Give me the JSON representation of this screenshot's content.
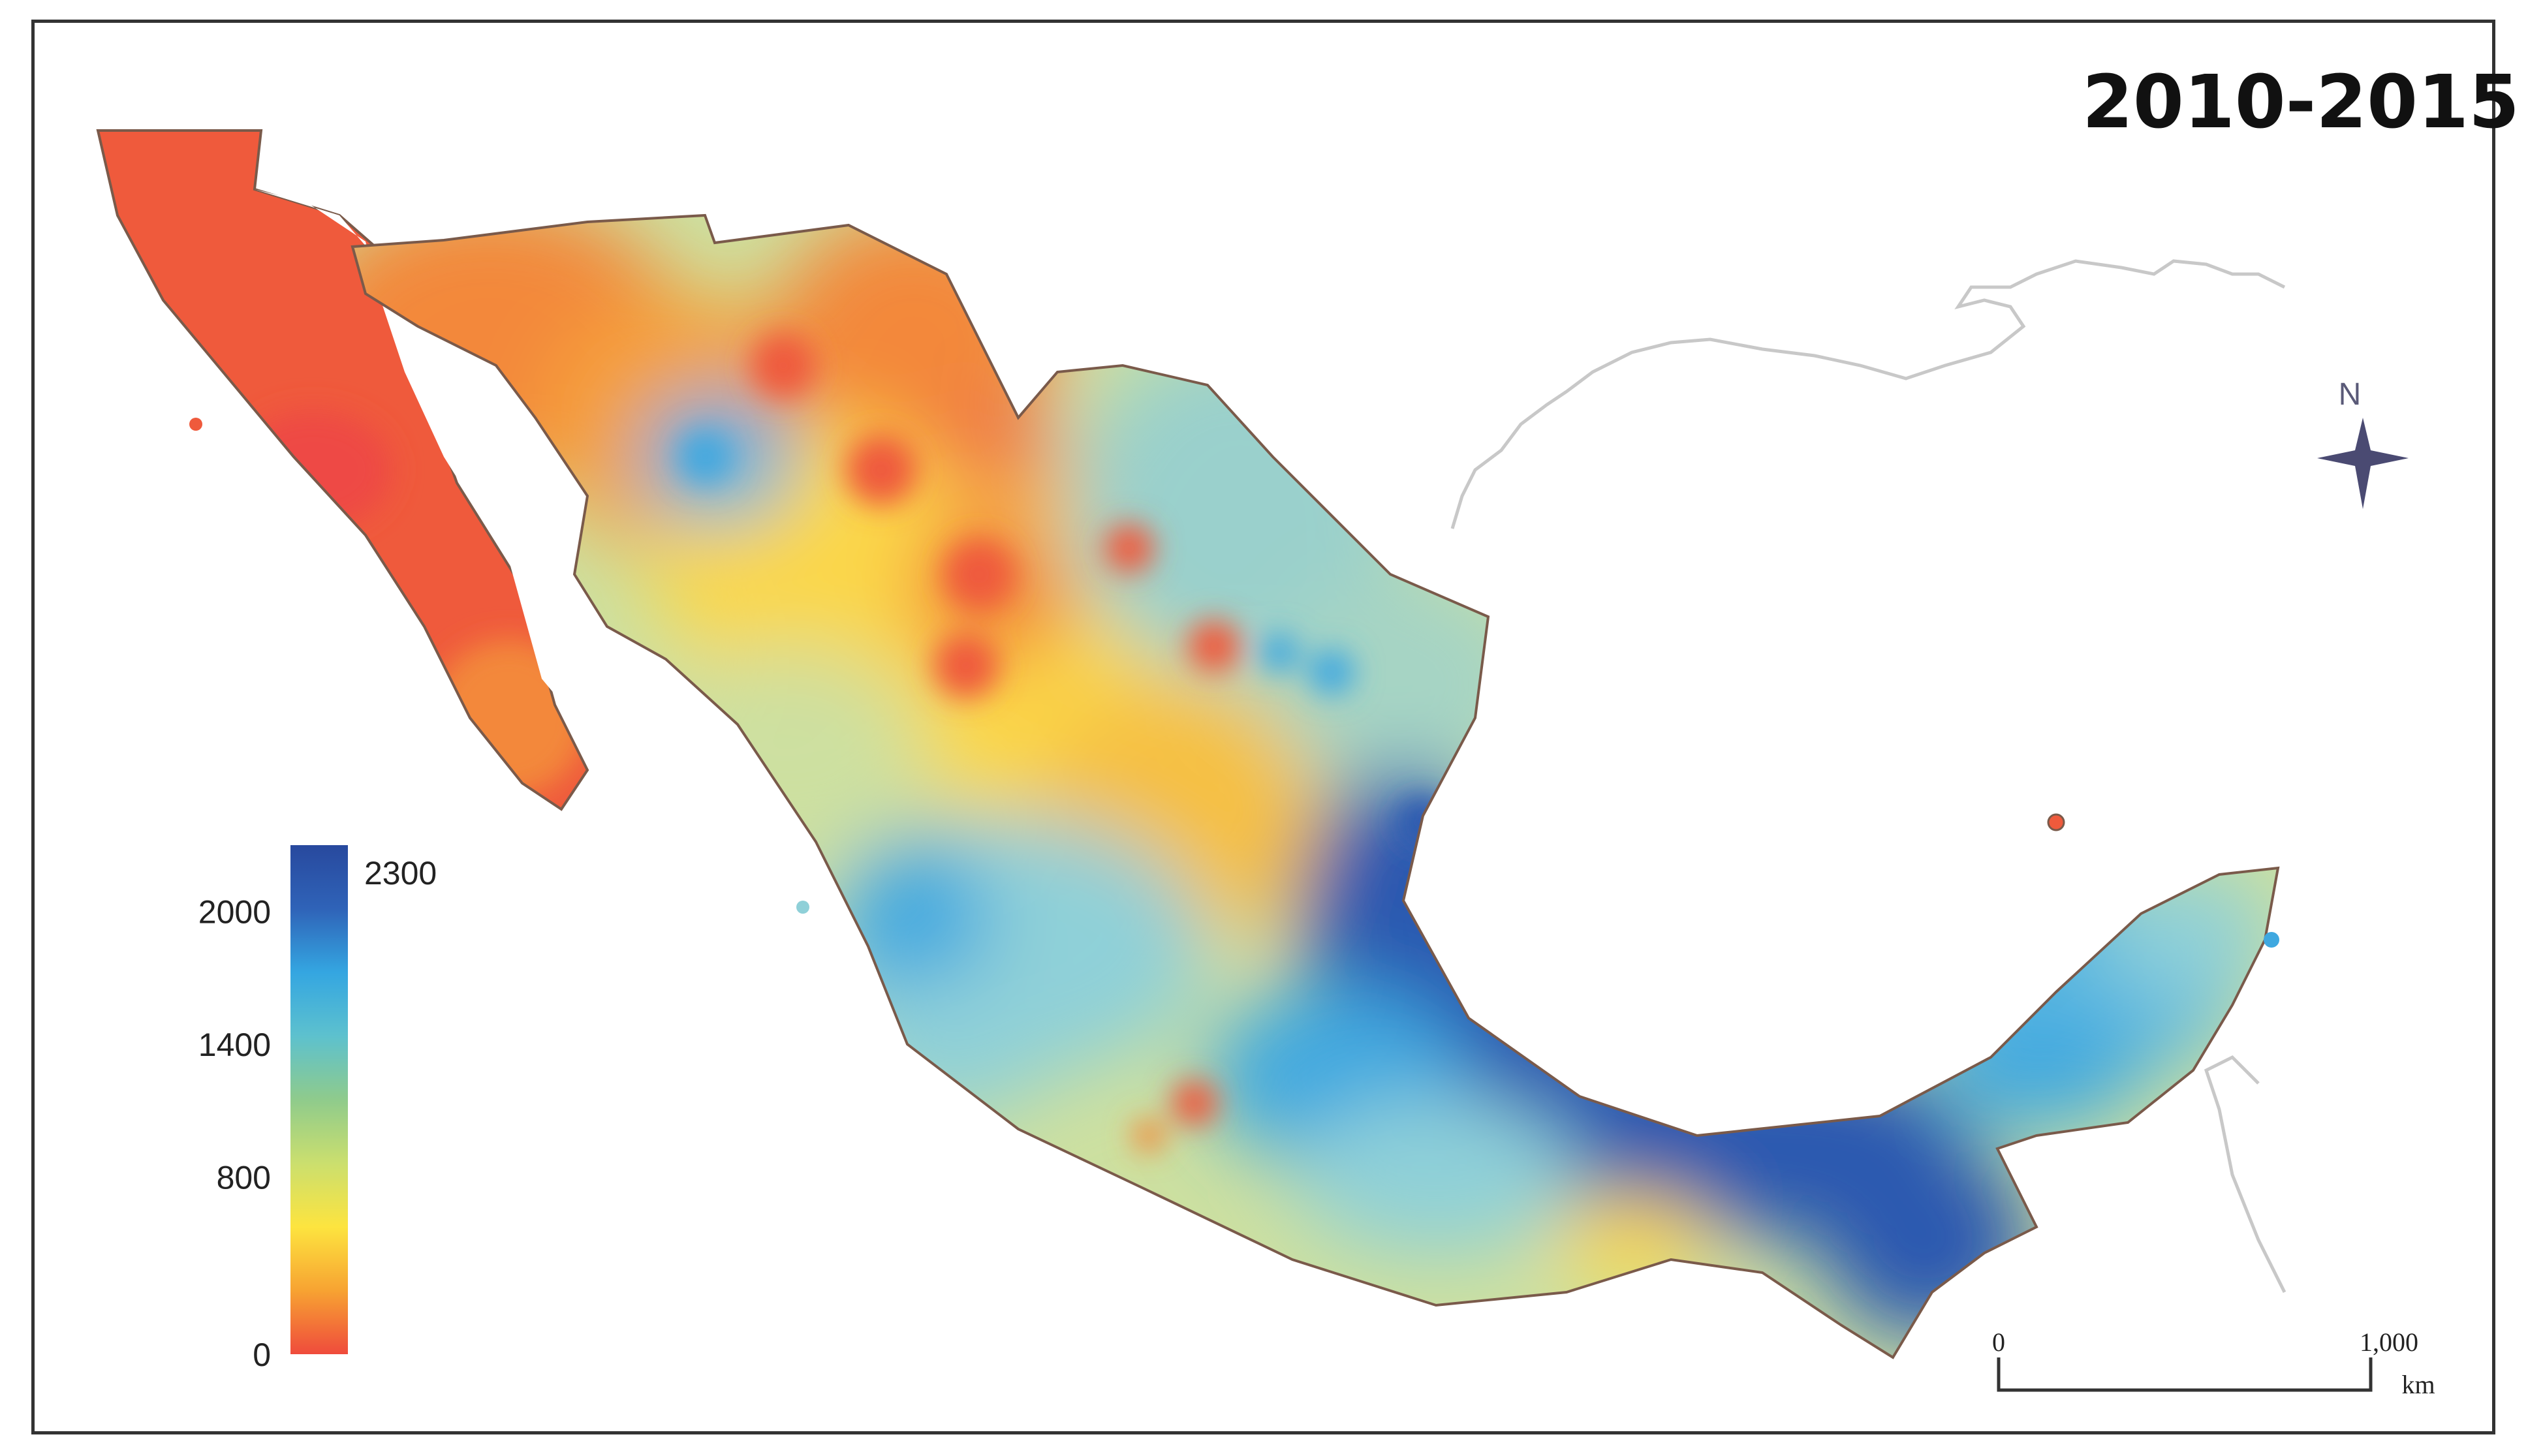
{
  "title": "2010-2015",
  "legend": {
    "colors": [
      "#ef4b3c",
      "#f7a332",
      "#fde43f",
      "#cbdf6e",
      "#8fcb8c",
      "#5dc1ce",
      "#34a6e1",
      "#2f63b8",
      "#28499e"
    ],
    "labels": [
      {
        "value": 2300,
        "text": "2300"
      },
      {
        "value": 2000,
        "text": "2000"
      },
      {
        "value": 1400,
        "text": "1400"
      },
      {
        "value": 800,
        "text": "800"
      },
      {
        "value": 0,
        "text": "0"
      }
    ]
  },
  "north_arrow": {
    "label": "N",
    "color": "#4a4a72"
  },
  "scale_bar": {
    "start": "0",
    "end": "1,000",
    "unit": "km"
  },
  "map_colors": {
    "red": "#ef5a3c",
    "orange": "#f3883a",
    "yellow": "#fbd74a",
    "light_yellow": "#f6e27a",
    "pale_green": "#cde0a0",
    "light_blue": "#8fd0d8",
    "blue": "#3fa8e0",
    "dark_blue": "#2c58b0",
    "outline": "#7a5a4a",
    "coast_line": "#c8c8c8"
  }
}
